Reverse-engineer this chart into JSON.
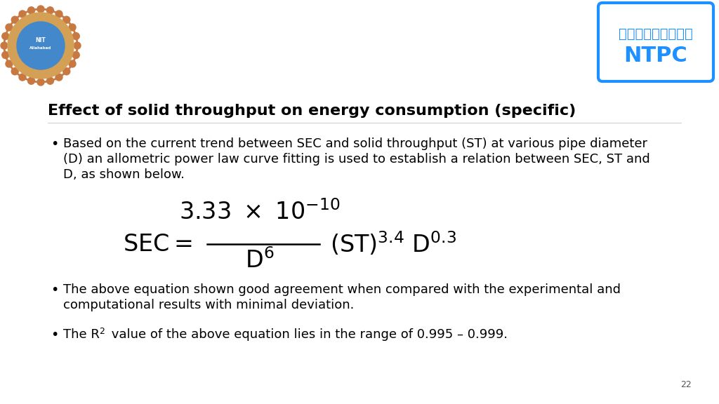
{
  "title": "Effect of solid throughput on energy consumption (specific)",
  "background_color": "#ffffff",
  "title_fontsize": 16,
  "bullet1_line1": "Based on the current trend between SEC and solid throughput (ST) at various pipe diameter",
  "bullet1_line2": "(D) an allometric power law curve fitting is used to establish a relation between SEC, ST and",
  "bullet1_line3": "D, as shown below.",
  "bullet2_line1": "The above equation shown good agreement when compared with the experimental and",
  "bullet2_line2": "computational results with minimal deviation.",
  "bullet3_rest": " value of the above equation lies in the range of 0.995 – 0.999.",
  "page_number": "22",
  "text_color": "#000000",
  "body_fontsize": 13,
  "equation_fontsize": 24,
  "ntpc_box_color": "#1e90ff",
  "ntpc_text_hindi": "एनडीपीएमी",
  "ntpc_text": "NTPC"
}
